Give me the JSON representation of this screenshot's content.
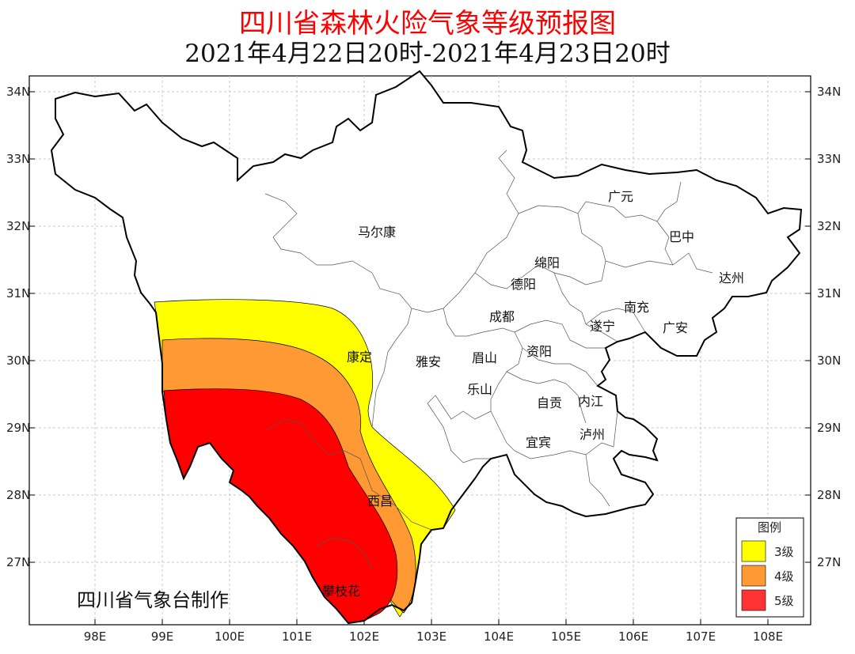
{
  "title": "四川省森林火险气象等级预报图",
  "subtitle": "2021年4月22日20时-2021年4月23日20时",
  "axes": {
    "lat_labels": [
      "34N",
      "33N",
      "32N",
      "31N",
      "30N",
      "29N",
      "28N",
      "27N"
    ],
    "lon_labels": [
      "98E",
      "99E",
      "100E",
      "101E",
      "102E",
      "103E",
      "104E",
      "105E",
      "106E",
      "107E",
      "108E"
    ]
  },
  "cities": {
    "maerkang": "马尔康",
    "guangyuan": "广元",
    "bazhong": "巴中",
    "mianyang": "绵阳",
    "deyang": "德阳",
    "dazhou": "达州",
    "chengdu": "成都",
    "nanchong": "南充",
    "suining": "遂宁",
    "guangan": "广安",
    "kangding": "康定",
    "yaan": "雅安",
    "meishan": "眉山",
    "ziyang": "资阳",
    "leshan": "乐山",
    "zigong": "自贡",
    "neijiang": "内江",
    "yibin": "宜宾",
    "luzhou": "泸州",
    "xichang": "西昌",
    "panzhihua": "攀枝花"
  },
  "legend": {
    "title": "图例",
    "items": [
      {
        "label": "3级",
        "color": "#ffff00"
      },
      {
        "label": "4级",
        "color": "#ff9933"
      },
      {
        "label": "5级",
        "color": "#ff3333"
      }
    ]
  },
  "zone_colors": {
    "level3": "#ffff00",
    "level4": "#ff9933",
    "level5": "#ff0000"
  },
  "credit": "四川省气象台制作"
}
